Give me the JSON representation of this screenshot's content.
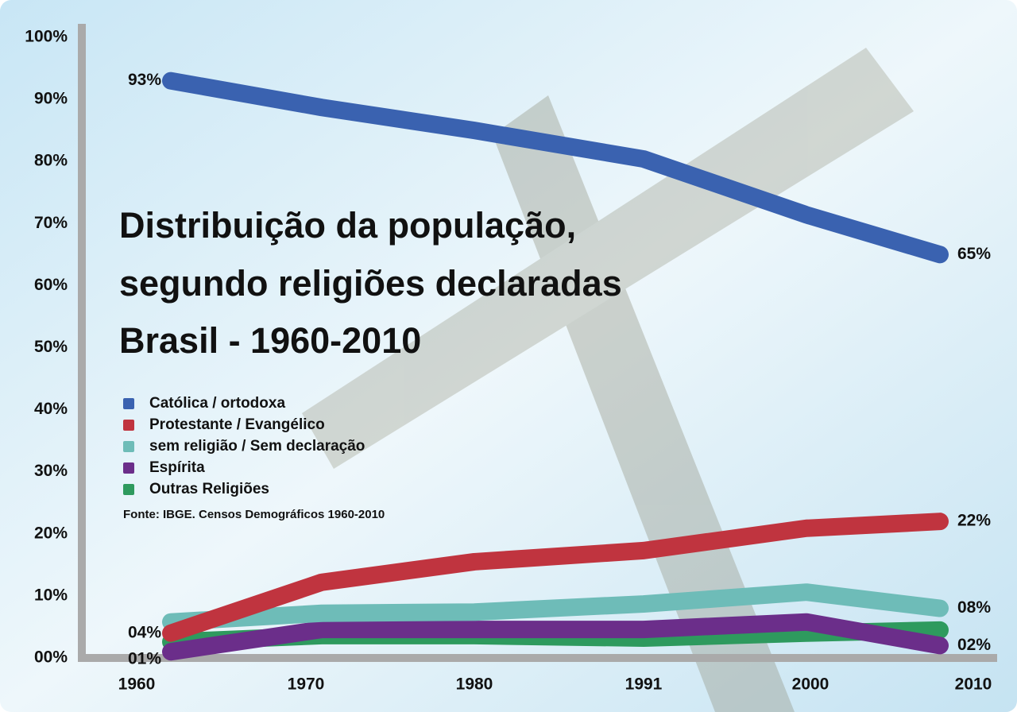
{
  "chart_data": {
    "type": "line",
    "title": [
      "Distribuição da população,",
      "segundo religiões declaradas",
      "Brasil - 1960-2010"
    ],
    "source": "Fonte: IBGE. Censos Demográficos 1960-2010",
    "categories": [
      "1960",
      "1970",
      "1980",
      "1991",
      "2000",
      "2010"
    ],
    "ylim": [
      0,
      100
    ],
    "yticks": [
      {
        "value": 0,
        "label": "00%"
      },
      {
        "value": 10,
        "label": "10%"
      },
      {
        "value": 20,
        "label": "20%"
      },
      {
        "value": 30,
        "label": "30%"
      },
      {
        "value": 40,
        "label": "40%"
      },
      {
        "value": 50,
        "label": "50%"
      },
      {
        "value": 60,
        "label": "60%"
      },
      {
        "value": 70,
        "label": "70%"
      },
      {
        "value": 80,
        "label": "80%"
      },
      {
        "value": 90,
        "label": "90%"
      },
      {
        "value": 100,
        "label": "100%"
      }
    ],
    "legend": "left",
    "series": [
      {
        "name": "Católica / ortodoxa",
        "color": "#3a62b0",
        "values": [
          93,
          88.7,
          85,
          80.4,
          71.4,
          65
        ],
        "value_labels": [
          "93%",
          null,
          null,
          null,
          null,
          "65%"
        ]
      },
      {
        "name": "Protestante / Evangélico",
        "color": "#c0343f",
        "values": [
          4,
          12.2,
          15.5,
          17.3,
          20.9,
          22
        ],
        "value_labels": [
          "04%",
          null,
          null,
          null,
          null,
          "22%"
        ]
      },
      {
        "name": "sem religião / Sem declaração",
        "color": "#6ebcb8",
        "values": [
          5.8,
          7.2,
          7.4,
          8.7,
          10.6,
          8
        ],
        "value_labels": [
          null,
          null,
          null,
          null,
          null,
          "08%"
        ]
      },
      {
        "name": "Espírita",
        "color": "#6b2e8a",
        "values": [
          1,
          4.6,
          4.6,
          4.6,
          5.8,
          2
        ],
        "value_labels": [
          "01%",
          null,
          null,
          null,
          null,
          "02%"
        ]
      },
      {
        "name": "Outras Religiões",
        "color": "#2e9a5e",
        "values": [
          2.6,
          3.6,
          3.6,
          3.2,
          4.0,
          4.5
        ],
        "value_labels": [
          null,
          null,
          null,
          null,
          null,
          null
        ]
      }
    ]
  }
}
